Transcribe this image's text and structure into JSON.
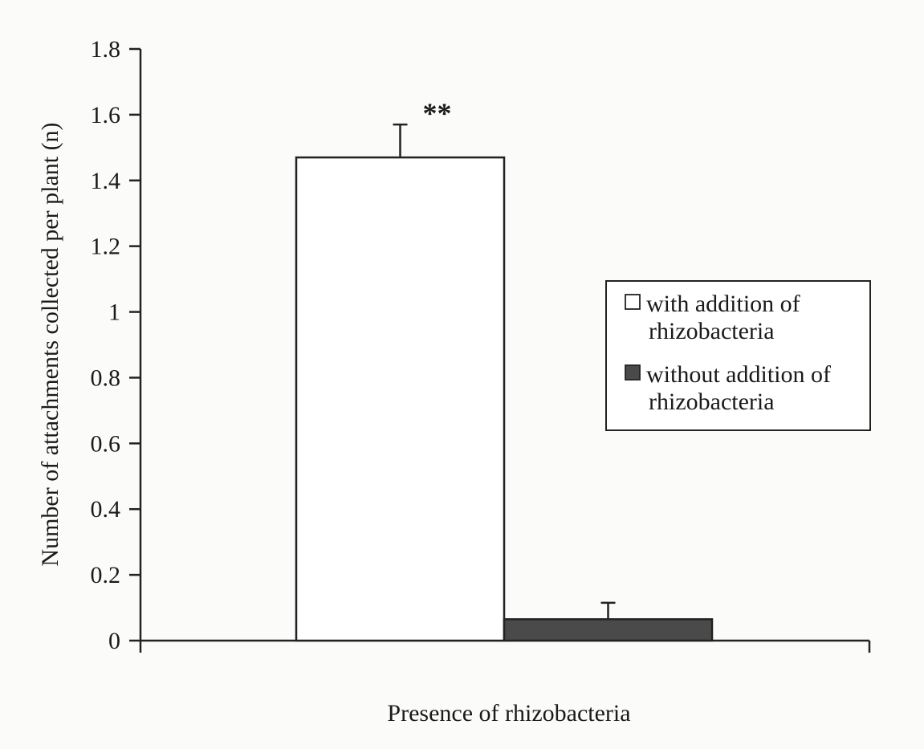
{
  "chart_data": {
    "type": "bar",
    "title": "",
    "xlabel": "Presence of rhizobacteria",
    "ylabel": "Number of attachments collected per plant (n)",
    "ylim": [
      0,
      1.8
    ],
    "yticks": [
      "0",
      "0.2",
      "0.4",
      "0.6",
      "0.8",
      "1",
      "1.2",
      "1.4",
      "1.6",
      "1.8"
    ],
    "grid": false,
    "legend_position": "right",
    "series": [
      {
        "name": "with addition of rhizobacteria",
        "legend_lines": [
          "with addition of",
          "rhizobacteria"
        ],
        "value": 1.47,
        "error": 0.1,
        "annotation": "**",
        "fill": "#ffffff"
      },
      {
        "name": "without addition of rhizobacteria",
        "legend_lines": [
          "without addition of",
          "rhizobacteria"
        ],
        "value": 0.065,
        "error": 0.05,
        "annotation": "",
        "fill": "#4a4a4a"
      }
    ]
  }
}
